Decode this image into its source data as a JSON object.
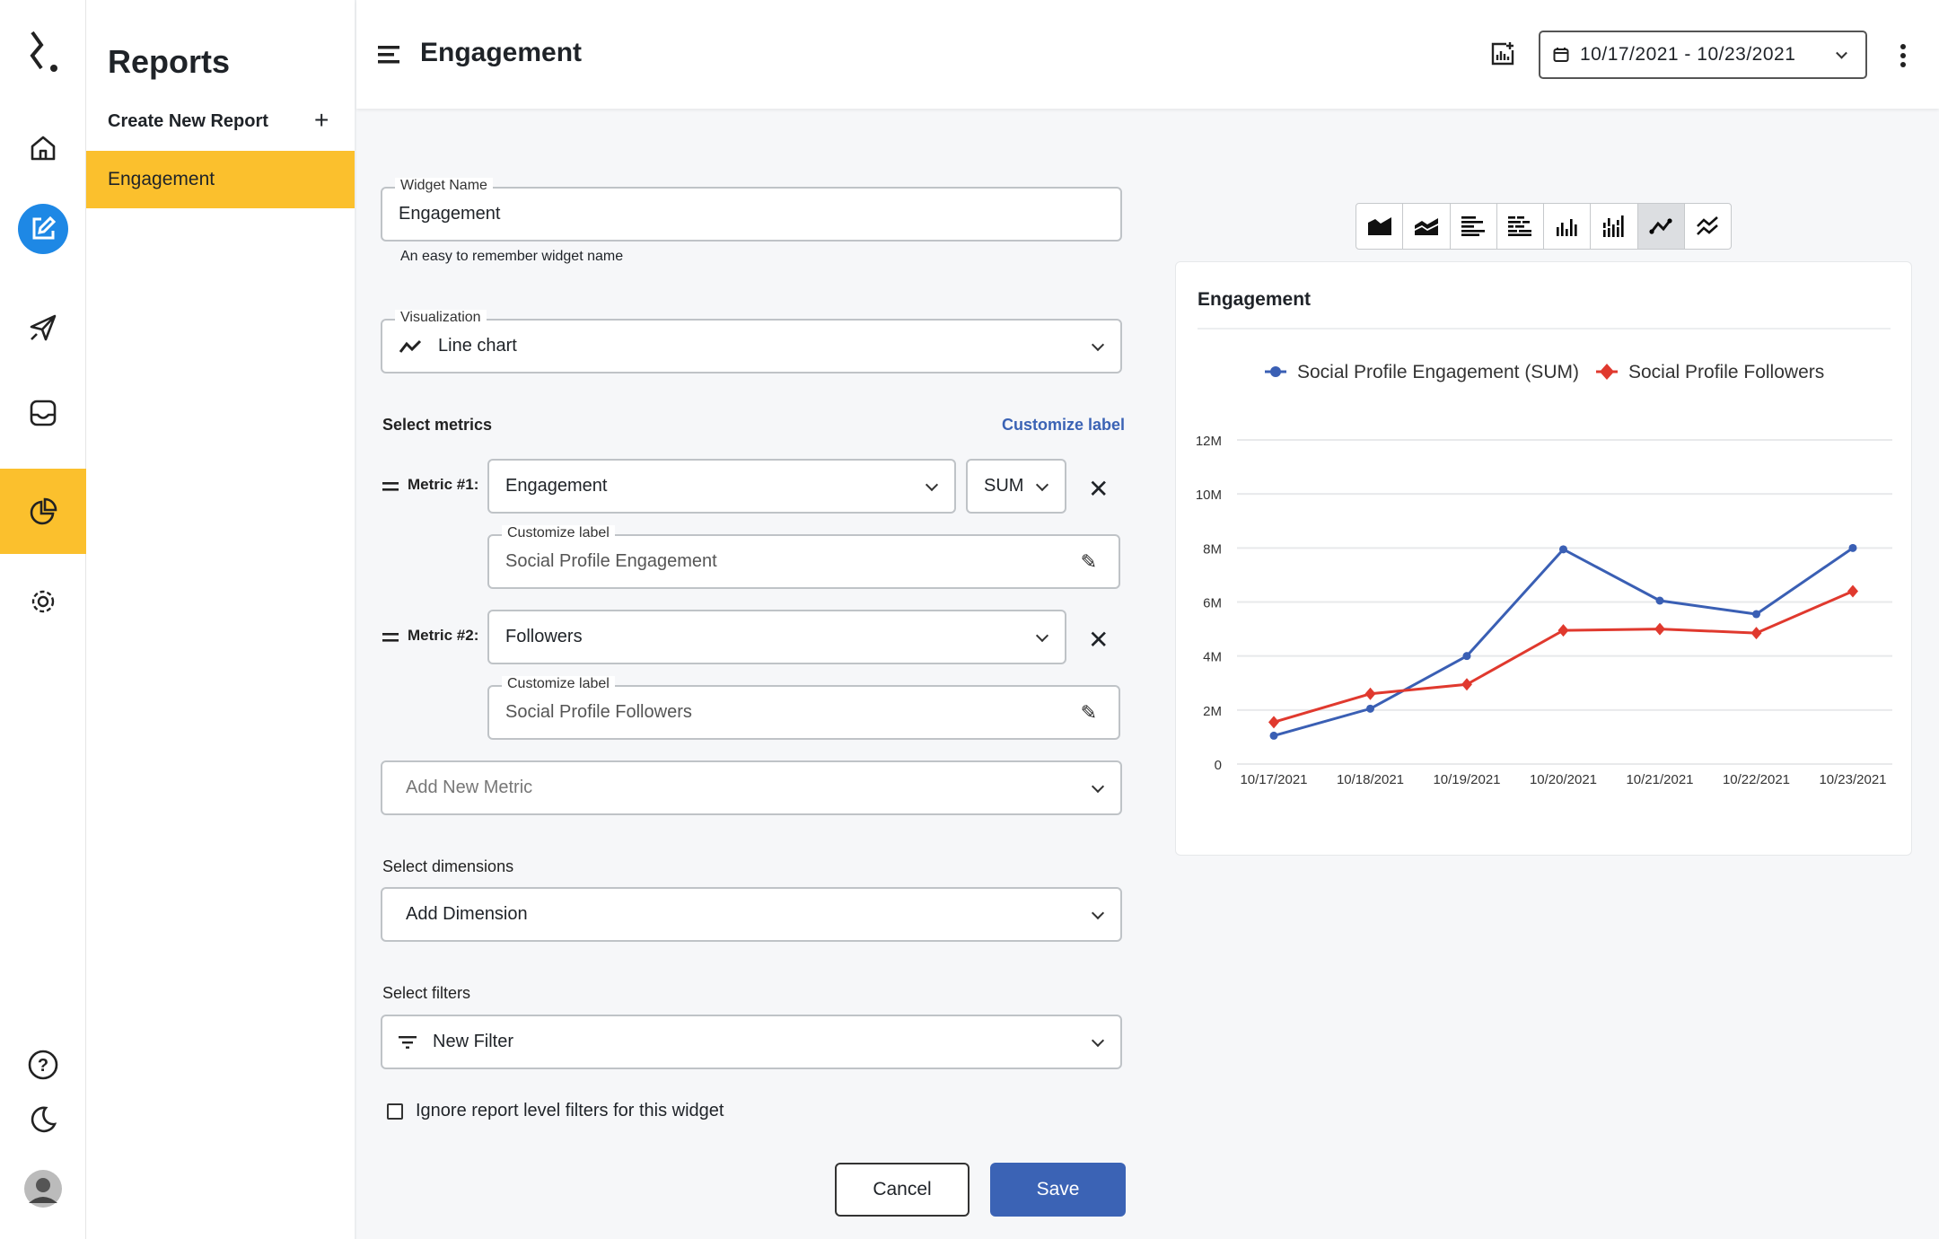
{
  "sidebar": {
    "title": "Reports",
    "create_label": "Create New Report",
    "items": [
      {
        "label": "Engagement",
        "active": true
      }
    ]
  },
  "header": {
    "title": "Engagement",
    "date_range": "10/17/2021 - 10/23/2021"
  },
  "form": {
    "widget_name": {
      "label": "Widget Name",
      "value": "Engagement",
      "helper": "An easy to remember widget name"
    },
    "visualization": {
      "label": "Visualization",
      "value": "Line chart"
    },
    "metrics_label": "Select metrics",
    "customize_link": "Customize label",
    "metrics": [
      {
        "label": "Metric #1:",
        "value": "Engagement",
        "agg": "SUM",
        "custom_label": "Customize label",
        "custom_value": "Social Profile Engagement"
      },
      {
        "label": "Metric #2:",
        "value": "Followers",
        "custom_label": "Customize label",
        "custom_value": "Social Profile Followers"
      }
    ],
    "add_metric_placeholder": "Add New Metric",
    "dimensions_label": "Select dimensions",
    "add_dimension": "Add Dimension",
    "filters_label": "Select filters",
    "new_filter": "New Filter",
    "ignore_filters": {
      "label": "Ignore report level filters for this widget",
      "checked": false
    },
    "cancel": "Cancel",
    "save": "Save"
  },
  "colors": {
    "accent": "#3b63b5",
    "highlight": "#fbc02d",
    "series1": "#3a5fb4",
    "series2": "#e0392e"
  },
  "chart_types": [
    "area",
    "stacked-area",
    "bar-horizontal",
    "stacked-bar-horizontal",
    "column",
    "stacked-column",
    "line",
    "multi-line"
  ],
  "chart_types_selected": "line",
  "chart_data": {
    "type": "line",
    "title": "Engagement",
    "legend": "top",
    "categories": [
      "10/17/2021",
      "10/18/2021",
      "10/19/2021",
      "10/20/2021",
      "10/21/2021",
      "10/22/2021",
      "10/23/2021"
    ],
    "yticks": [
      "0",
      "2M",
      "4M",
      "6M",
      "8M",
      "10M",
      "12M"
    ],
    "ylim": [
      0,
      12000000
    ],
    "grid": true,
    "series": [
      {
        "name": "Social Profile Engagement (SUM)",
        "marker": "circle",
        "values": [
          1050000,
          2050000,
          4000000,
          7950000,
          6050000,
          5550000,
          8000000
        ]
      },
      {
        "name": "Social Profile Followers",
        "marker": "diamond",
        "values": [
          1550000,
          2600000,
          2950000,
          4950000,
          5000000,
          4850000,
          6400000
        ]
      }
    ]
  }
}
